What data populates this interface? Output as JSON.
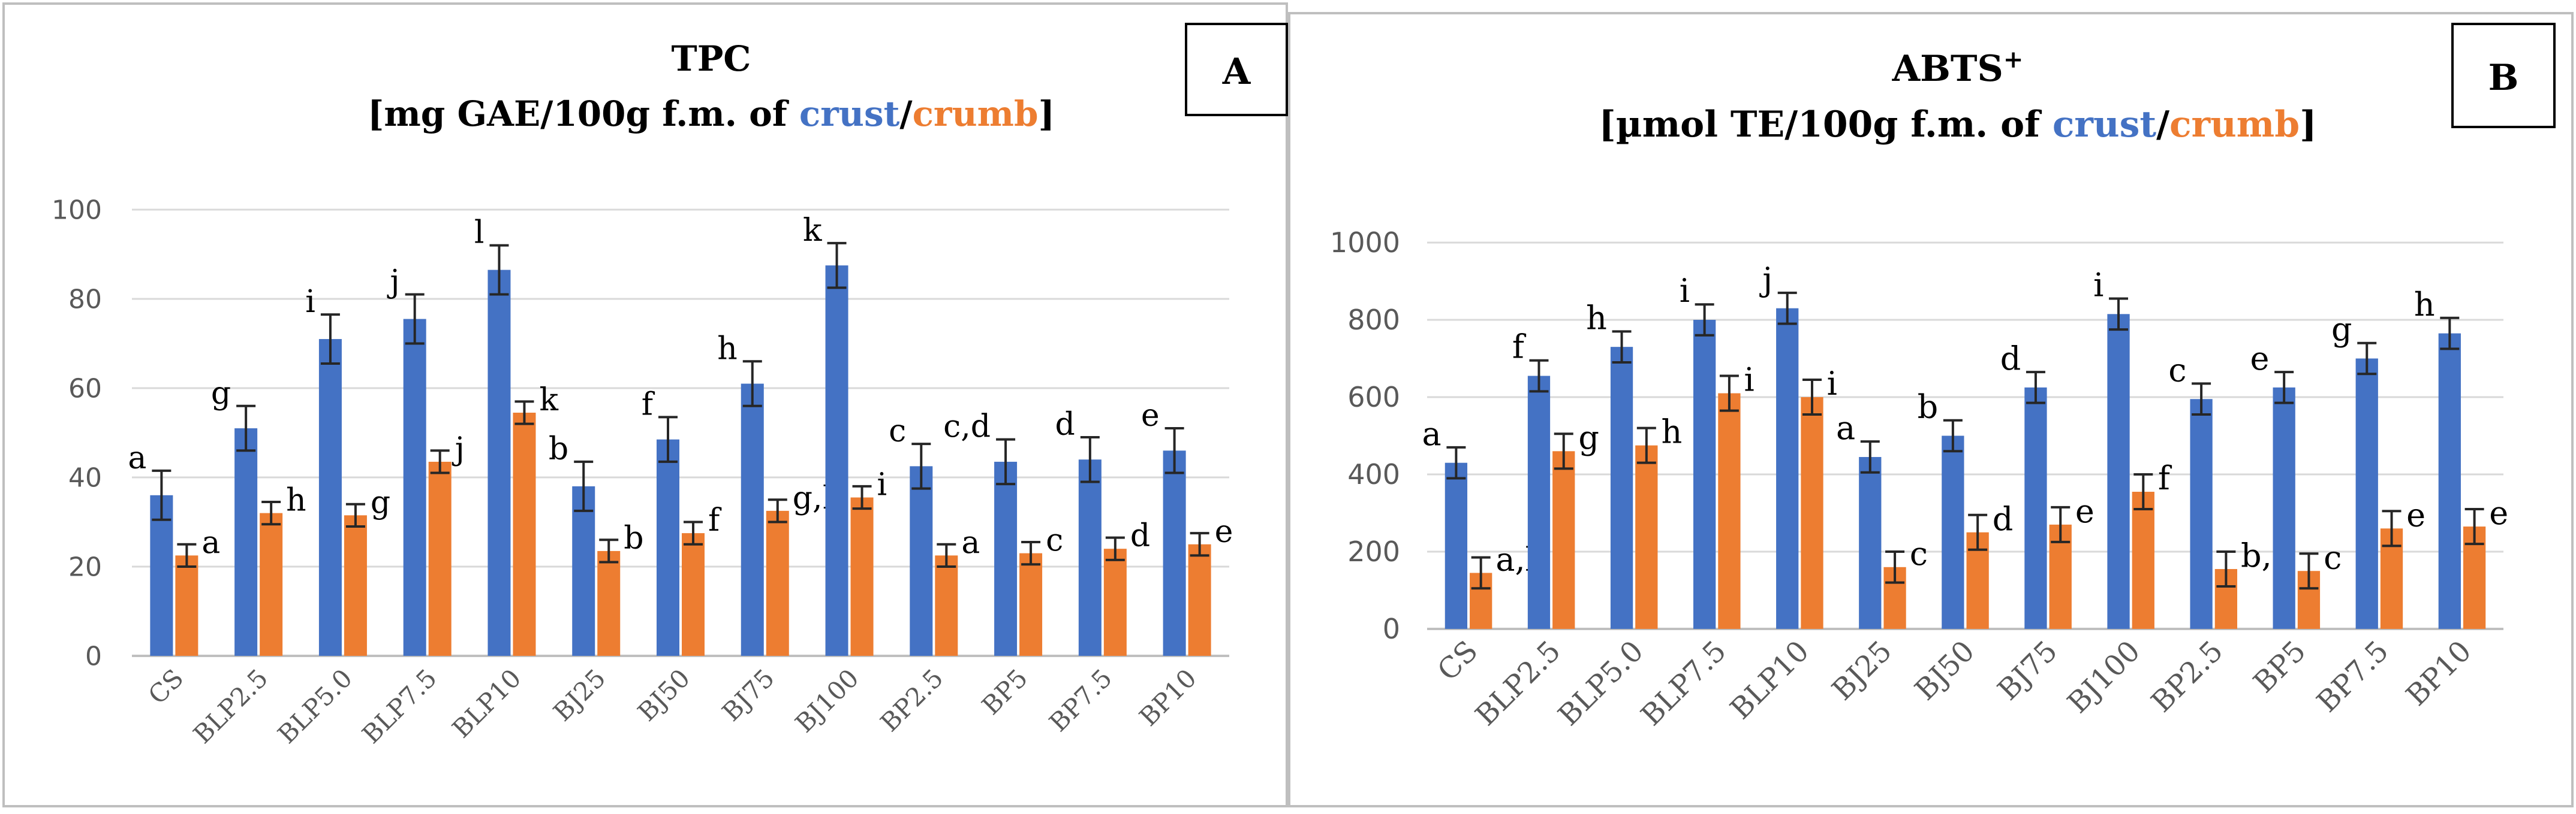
{
  "colors": {
    "crust": "#4472C4",
    "crumb": "#ED7D31",
    "grid": "#D9D9D9",
    "axis": "#BFBFBF",
    "text": "#000000",
    "tick": "#595959",
    "error": "#262626"
  },
  "panels": [
    {
      "id": "A",
      "badge": "A",
      "title_line1": "TPC",
      "title_line2_prefix": "[mg GAE/100g f.m. of ",
      "crust_label": "crust",
      "slash": "/",
      "crumb_label": "crumb",
      "title_line2_suffix": "]",
      "chart_data": {
        "type": "bar",
        "categories": [
          "CS",
          "BLP2.5",
          "BLP5.0",
          "BLP7.5",
          "BLP10",
          "BJ25",
          "BJ50",
          "BJ75",
          "BJ100",
          "BP2.5",
          "BP5",
          "BP7.5",
          "BP10"
        ],
        "ylim": [
          0,
          100
        ],
        "yticks": [
          0,
          20,
          40,
          60,
          80,
          100
        ],
        "series": [
          {
            "name": "crust",
            "values": [
              36,
              51,
              71,
              75.5,
              86.5,
              38,
              48.5,
              61,
              87.5,
              42.5,
              43.5,
              44,
              46
            ],
            "errors": [
              5.5,
              5,
              5.5,
              5.5,
              5.5,
              5.5,
              5,
              5,
              5,
              5,
              5,
              5,
              5
            ],
            "letters": [
              "a",
              "g",
              "i",
              "j",
              "l",
              "b",
              "f",
              "h",
              "k",
              "c",
              "c,d",
              "d",
              "e"
            ]
          },
          {
            "name": "crumb",
            "values": [
              22.5,
              32,
              31.5,
              43.5,
              54.5,
              23.5,
              27.5,
              32.5,
              35.5,
              22.5,
              23,
              24,
              25
            ],
            "errors": [
              2.5,
              2.5,
              2.5,
              2.5,
              2.5,
              2.5,
              2.5,
              2.5,
              2.5,
              2.5,
              2.5,
              2.5,
              2.5
            ],
            "letters": [
              "a",
              "h",
              "g",
              "j",
              "k",
              "b",
              "f",
              "g,h",
              "i",
              "a",
              "c",
              "d",
              "e"
            ]
          }
        ]
      }
    },
    {
      "id": "B",
      "badge": "B",
      "title_line1": "ABTS",
      "title_sup": "+",
      "title_line2_prefix": "[µmol TE/100g f.m. of ",
      "crust_label": "crust",
      "slash": "/",
      "crumb_label": "crumb",
      "title_line2_suffix": "]",
      "chart_data": {
        "type": "bar",
        "categories": [
          "CS",
          "BLP2.5",
          "BLP5.0",
          "BLP7.5",
          "BLP10",
          "BJ25",
          "BJ50",
          "BJ75",
          "BJ100",
          "BP2.5",
          "BP5",
          "BP7.5",
          "BP10"
        ],
        "ylim": [
          0,
          1000
        ],
        "yticks": [
          0,
          200,
          400,
          600,
          800,
          1000
        ],
        "series": [
          {
            "name": "crust",
            "values": [
              430,
              655,
              730,
              800,
              830,
              445,
              500,
              625,
              815,
              595,
              625,
              700,
              765
            ],
            "errors": [
              40,
              40,
              40,
              40,
              40,
              40,
              40,
              40,
              40,
              40,
              40,
              40,
              40
            ],
            "letters": [
              "a",
              "f",
              "h",
              "i",
              "j",
              "a",
              "b",
              "d",
              "i",
              "c",
              "e",
              "g",
              "h"
            ]
          },
          {
            "name": "crumb",
            "values": [
              145,
              460,
              475,
              610,
              600,
              160,
              250,
              270,
              355,
              155,
              150,
              260,
              265
            ],
            "errors": [
              40,
              45,
              45,
              45,
              45,
              40,
              45,
              45,
              45,
              45,
              45,
              45,
              45
            ],
            "letters": [
              "a,b",
              "g",
              "h",
              "i",
              "i",
              "c",
              "d",
              "e",
              "f",
              "b,c",
              "c",
              "e",
              "e"
            ]
          }
        ]
      }
    }
  ]
}
